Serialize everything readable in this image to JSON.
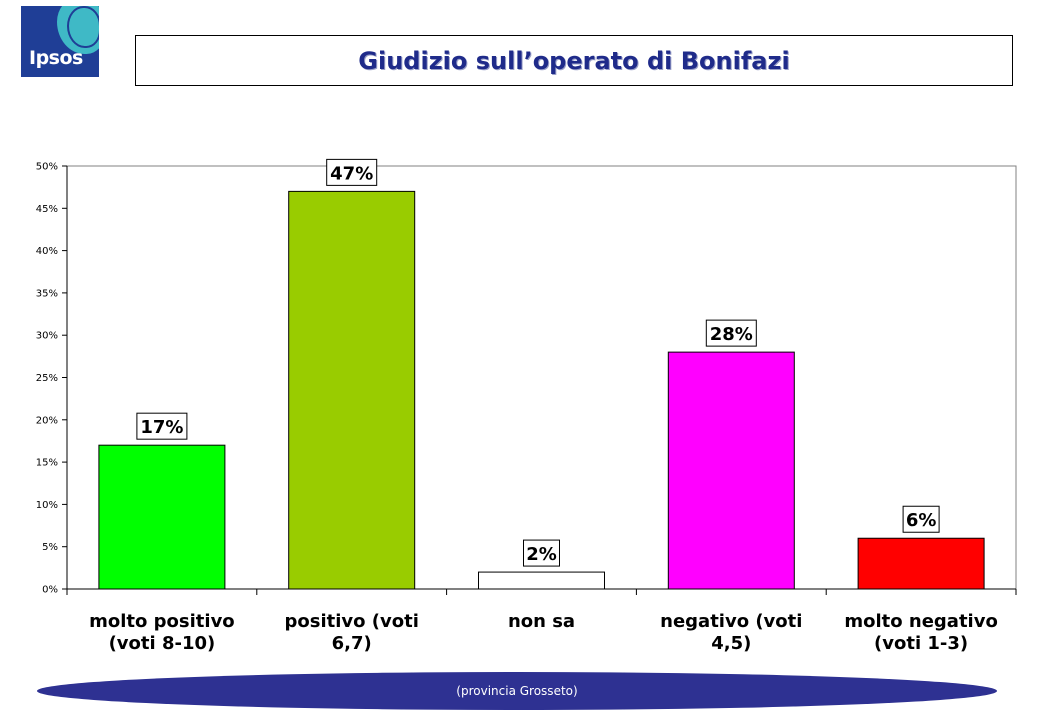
{
  "logo": {
    "text": "Ipsos"
  },
  "title": "Giudizio sull’operato di Bonifazi",
  "footer": "(provincia Grosseto)",
  "chart_data": {
    "type": "bar",
    "title": "",
    "xlabel": "",
    "ylabel": "",
    "ylim": [
      0,
      50
    ],
    "yticks": [
      "0%",
      "5%",
      "10%",
      "15%",
      "20%",
      "25%",
      "30%",
      "35%",
      "40%",
      "45%",
      "50%"
    ],
    "grid": false,
    "categories": [
      [
        "molto positivo",
        "(voti 8-10)"
      ],
      [
        "positivo (voti",
        "6,7)"
      ],
      [
        "non sa"
      ],
      [
        "negativo (voti",
        "4,5)"
      ],
      [
        "molto negativo",
        "(voti 1-3)"
      ]
    ],
    "values": [
      17,
      47,
      2,
      28,
      6
    ],
    "data_labels": [
      "17%",
      "47%",
      "2%",
      "28%",
      "6%"
    ],
    "colors": [
      "#00ff00",
      "#99cc00",
      "#ffffff",
      "#ff00ff",
      "#ff0000"
    ]
  }
}
